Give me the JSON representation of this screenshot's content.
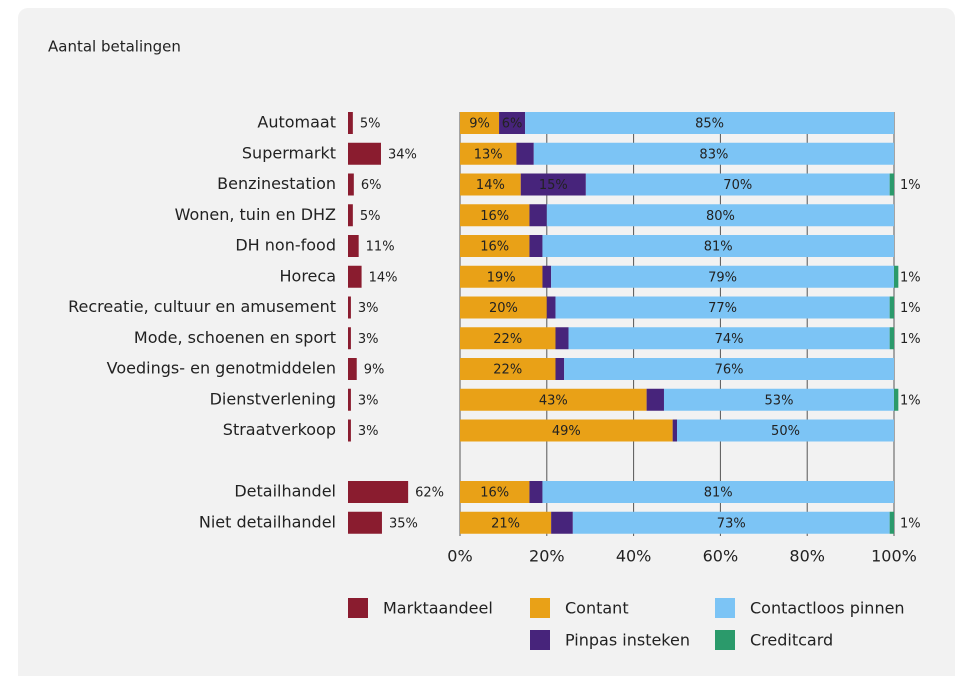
{
  "chart_data": {
    "type": "stacked-bar-horizontal",
    "title": "Aantal betalingen",
    "categories": [
      "Automaat",
      "Supermarkt",
      "Benzinestation",
      "Wonen, tuin en DHZ",
      "DH non-food",
      "Horeca",
      "Recreatie, cultuur en amusement",
      "Mode, schoenen en sport",
      "Voedings- en genotmiddelen",
      "Dienstverlening",
      "Straatverkoop",
      null,
      "Detailhandel",
      "Niet detailhandel"
    ],
    "market_share": {
      "name": "Marktaandeel",
      "color": "#8a1c2f",
      "values": [
        5,
        34,
        6,
        5,
        11,
        14,
        3,
        3,
        9,
        3,
        3,
        null,
        62,
        35
      ],
      "value_labels": [
        "5%",
        "34%",
        "6%",
        "5%",
        "11%",
        "14%",
        "3%",
        "3%",
        "9%",
        "3%",
        "3%",
        null,
        "62%",
        "35%"
      ]
    },
    "series": [
      {
        "name": "Contant",
        "color": "#e9a117",
        "values": [
          9,
          13,
          14,
          16,
          16,
          19,
          20,
          22,
          22,
          43,
          49,
          null,
          16,
          21
        ],
        "value_labels": [
          "9%",
          "13%",
          "14%",
          "16%",
          "16%",
          "19%",
          "20%",
          "22%",
          "22%",
          "43%",
          "49%",
          null,
          "16%",
          "21%"
        ]
      },
      {
        "name": "Pinpas insteken",
        "color": "#47247b",
        "values": [
          6,
          4,
          15,
          4,
          3,
          2,
          2,
          3,
          2,
          4,
          1,
          null,
          3,
          5
        ],
        "value_labels": [
          "6%",
          "4%",
          "15%",
          "4%",
          "3%",
          "2%",
          "2%",
          "3%",
          "2%",
          "4%",
          "1%",
          null,
          "3%",
          "5%"
        ]
      },
      {
        "name": "Contactloos pinnen",
        "color": "#7cc4f5",
        "values": [
          85,
          83,
          70,
          80,
          81,
          79,
          77,
          74,
          76,
          53,
          50,
          null,
          81,
          73
        ],
        "value_labels": [
          "85%",
          "83%",
          "70%",
          "80%",
          "81%",
          "79%",
          "77%",
          "74%",
          "76%",
          "53%",
          "50%",
          null,
          "81%",
          "73%"
        ]
      },
      {
        "name": "Creditcard",
        "color": "#2b9a6b",
        "values": [
          0,
          0,
          1,
          0,
          0,
          1,
          1,
          1,
          0,
          1,
          0,
          null,
          0,
          1
        ],
        "value_labels": [
          null,
          null,
          "1%",
          null,
          null,
          "1%",
          "1%",
          "1%",
          null,
          "1%",
          null,
          null,
          null,
          "1%"
        ]
      }
    ],
    "xlim": [
      0,
      100
    ],
    "xticks": [
      {
        "value": 0,
        "label": "0%"
      },
      {
        "value": 20,
        "label": "20%"
      },
      {
        "value": 40,
        "label": "40%"
      },
      {
        "value": 60,
        "label": "60%"
      },
      {
        "value": 80,
        "label": "80%"
      },
      {
        "value": 100,
        "label": "100%"
      }
    ],
    "grid": true
  }
}
